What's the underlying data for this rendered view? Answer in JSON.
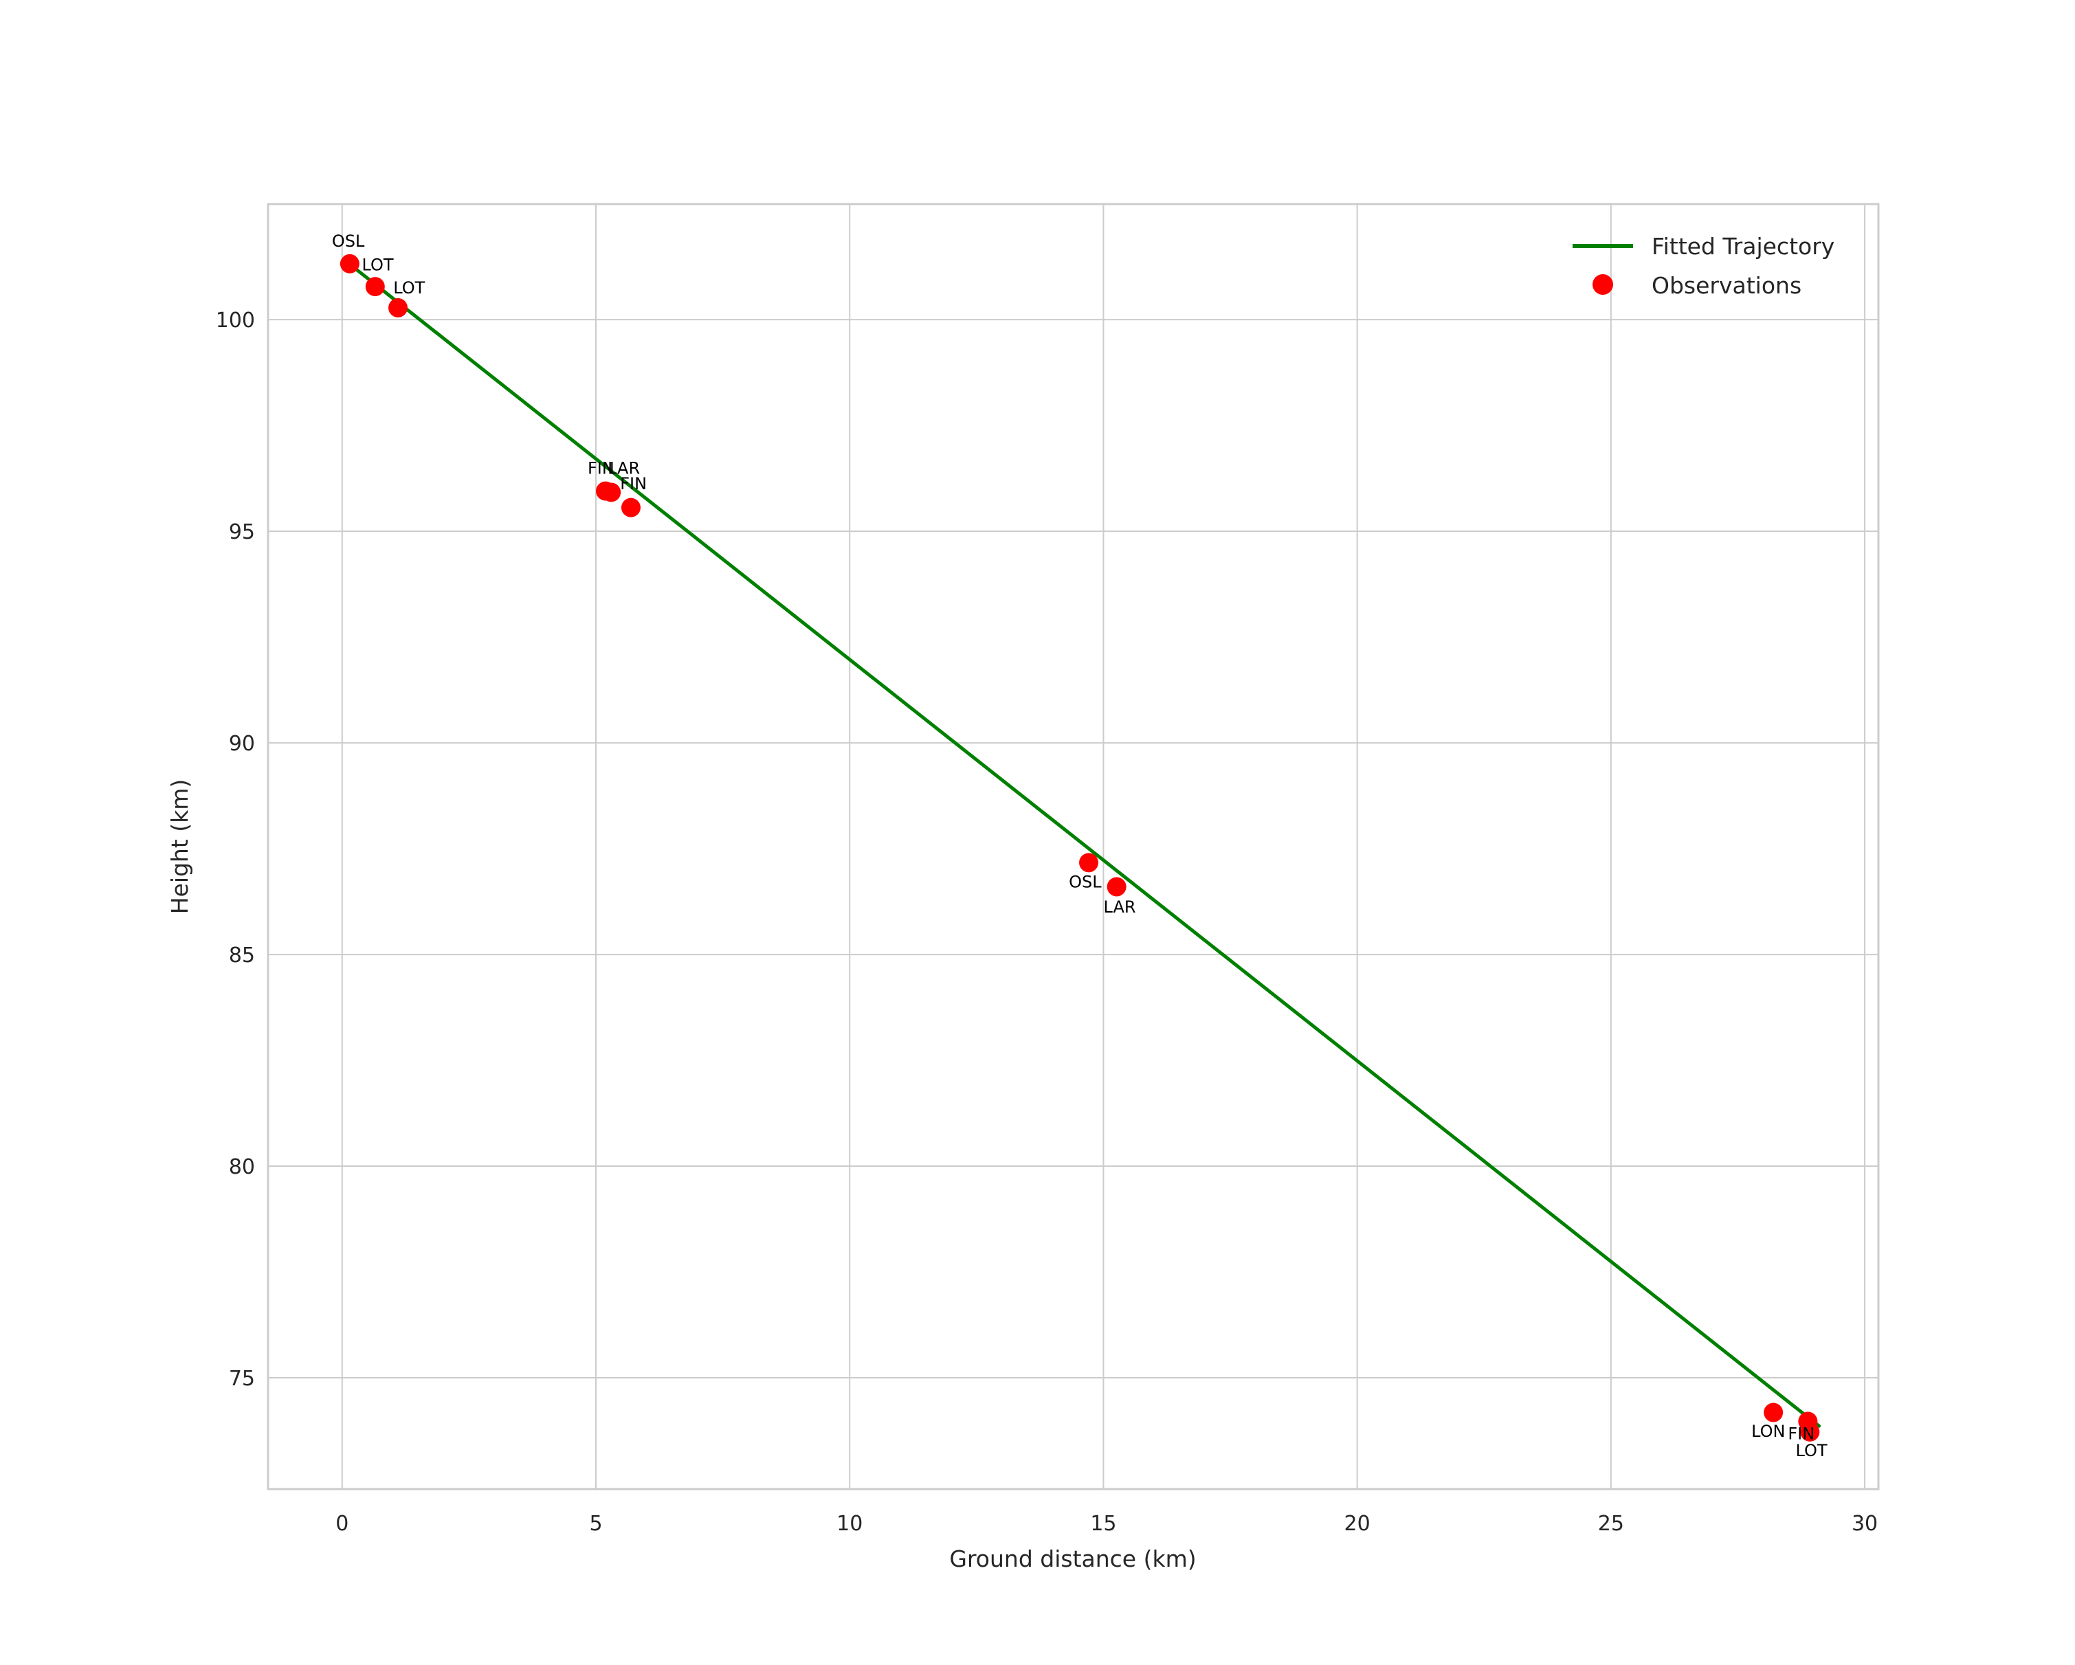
{
  "chart_data": {
    "type": "scatter",
    "title": "",
    "xlabel": "Ground distance (km)",
    "ylabel": "Height (km)",
    "xlim": [
      -1.46,
      30.27
    ],
    "ylim": [
      72.37,
      102.73
    ],
    "xticks": [
      0,
      5,
      10,
      15,
      20,
      25,
      30
    ],
    "yticks": [
      75,
      80,
      85,
      90,
      95,
      100
    ],
    "grid": true,
    "legend_position": "upper right",
    "colors": {
      "line": "#008000",
      "points": "#ff0000",
      "grid": "#cccccc",
      "axis_text": "#262626",
      "annotation": "#000000"
    },
    "fitted_line": {
      "name": "Fitted Trajectory",
      "x": [
        0.16,
        29.1
      ],
      "y": [
        101.3,
        73.86
      ]
    },
    "observations": {
      "name": "Observations",
      "points": [
        {
          "x": 0.15,
          "y": 101.32,
          "label": "OSL",
          "label_x": 0.12,
          "label_y": 101.72
        },
        {
          "x": 0.65,
          "y": 100.78,
          "label": "LOT",
          "label_x": 0.7,
          "label_y": 101.16
        },
        {
          "x": 1.1,
          "y": 100.28,
          "label": "LOT",
          "label_x": 1.32,
          "label_y": 100.62
        },
        {
          "x": 5.19,
          "y": 95.95,
          "label": "FIN",
          "label_x": 5.1,
          "label_y": 96.36
        },
        {
          "x": 5.3,
          "y": 95.92,
          "label": "LAR",
          "label_x": 5.55,
          "label_y": 96.36
        },
        {
          "x": 5.69,
          "y": 95.56,
          "label": "FIN",
          "label_x": 5.74,
          "label_y": 95.99
        },
        {
          "x": 14.71,
          "y": 87.17,
          "label": "OSL",
          "label_x": 14.64,
          "label_y": 86.58
        },
        {
          "x": 15.26,
          "y": 86.6,
          "label": "LAR",
          "label_x": 15.32,
          "label_y": 85.99
        },
        {
          "x": 28.2,
          "y": 74.18,
          "label": "LON",
          "label_x": 28.1,
          "label_y": 73.6
        },
        {
          "x": 28.88,
          "y": 73.97,
          "label": "FIN",
          "label_x": 28.75,
          "label_y": 73.55
        },
        {
          "x": 28.92,
          "y": 73.72,
          "label": "LOT",
          "label_x": 28.95,
          "label_y": 73.15
        }
      ]
    },
    "legend": {
      "items": [
        {
          "label": "Fitted Trajectory",
          "marker": "line",
          "color": "#008000"
        },
        {
          "label": "Observations",
          "marker": "dot",
          "color": "#ff0000"
        }
      ]
    }
  }
}
